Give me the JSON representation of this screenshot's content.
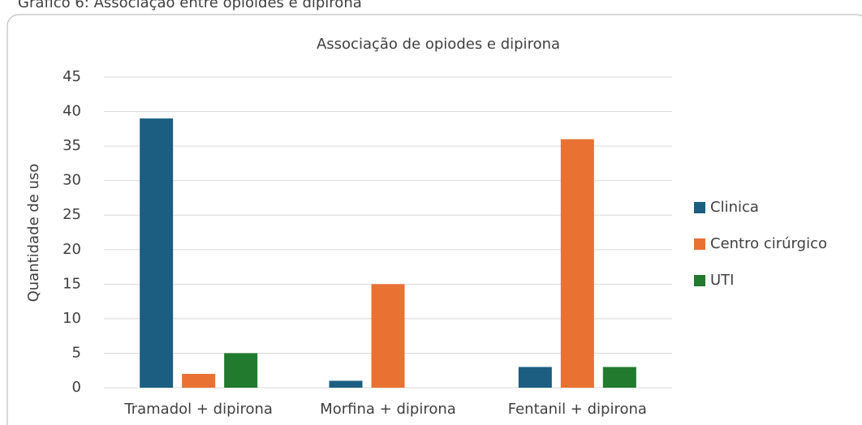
{
  "caption": "Gráfico 6: Associação entre opioides e dipirona",
  "chart_data": {
    "type": "bar",
    "title": "Associação de opiodes e dipirona",
    "y_label": "Quantidade de uso",
    "categories": [
      "Tramadol + dipirona",
      "Morfina + dipirona",
      "Fentanil + dipirona"
    ],
    "series": [
      {
        "name": "Clinica",
        "color": "#1b5e82",
        "values": [
          39,
          1,
          3
        ]
      },
      {
        "name": "Centro cirúrgico",
        "color": "#e97132",
        "values": [
          2,
          15,
          36
        ]
      },
      {
        "name": "UTI",
        "color": "#217a2e",
        "values": [
          5,
          0,
          3
        ]
      }
    ],
    "ylim": [
      0,
      45
    ],
    "yticks": [
      0,
      5,
      10,
      15,
      20,
      25,
      30,
      35,
      40,
      45
    ],
    "grid": true,
    "legend": "right"
  }
}
